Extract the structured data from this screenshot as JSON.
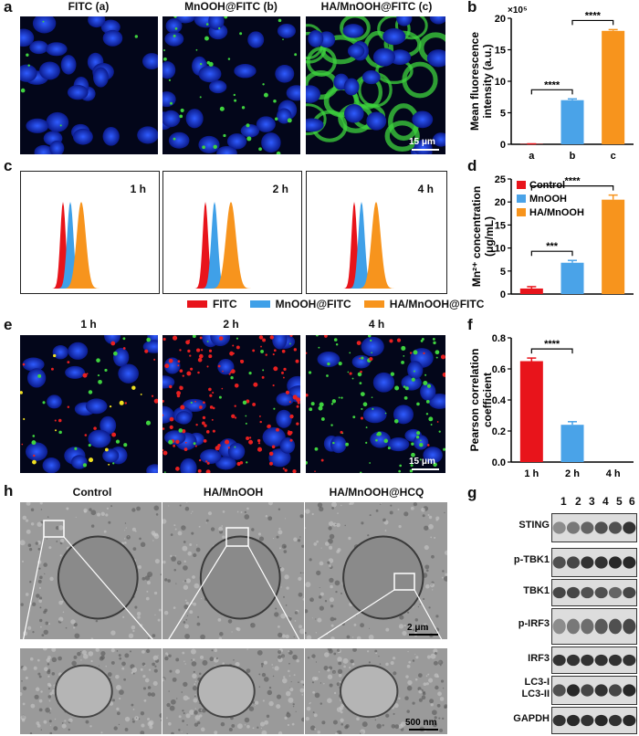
{
  "panel_letters": {
    "a": "a",
    "b": "b",
    "c": "c",
    "d": "d",
    "e": "e",
    "f": "f",
    "g": "g",
    "h": "h"
  },
  "panel_a": {
    "titles": [
      "FITC (a)",
      "MnOOH@FITC (b)",
      "HA/MnOOH@FITC (c)"
    ],
    "scale_bar": "15 μm"
  },
  "panel_c": {
    "times": [
      "1 h",
      "2 h",
      "4 h"
    ],
    "legend": [
      {
        "label": "FITC",
        "color": "#e8141b"
      },
      {
        "label": "MnOOH@FITC",
        "color": "#3fa0e8"
      },
      {
        "label": "HA/MnOOH@FITC",
        "color": "#f7941d"
      }
    ]
  },
  "panel_e": {
    "times": [
      "1 h",
      "2 h",
      "4 h"
    ],
    "scale_bar": "15 μm"
  },
  "panel_h": {
    "titles": [
      "Control",
      "HA/MnOOH",
      "HA/MnOOH@HCQ"
    ],
    "scale_bar_top": "2 μm",
    "scale_bar_bottom": "500 nm"
  },
  "panel_g": {
    "lanes": [
      "1",
      "2",
      "3",
      "4",
      "5",
      "6"
    ],
    "bands": [
      "STING",
      "p-TBK1",
      "TBK1",
      "p-IRF3",
      "IRF3",
      "LC3-I",
      "LC3-II",
      "GAPDH"
    ]
  },
  "chart_data": [
    {
      "panel": "b",
      "type": "bar",
      "categories": [
        "a",
        "b",
        "c"
      ],
      "values": [
        0.05,
        7.0,
        18.0
      ],
      "errors": [
        0.02,
        0.2,
        0.2
      ],
      "colors": [
        "#e8141b",
        "#4aa3e8",
        "#f7941d"
      ],
      "ylabel": "Mean fluorescence intensity (a.u.)",
      "y_multiplier": "×10⁵",
      "ylim": [
        0,
        20
      ],
      "yticks": [
        0,
        5,
        10,
        15,
        20
      ],
      "significance": [
        {
          "from": "a",
          "to": "b",
          "label": "****"
        },
        {
          "from": "b",
          "to": "c",
          "label": "****"
        }
      ]
    },
    {
      "panel": "d",
      "type": "bar",
      "categories": [
        "Control",
        "MnOOH",
        "HA/MnOOH"
      ],
      "values": [
        1.2,
        6.8,
        20.5
      ],
      "errors": [
        0.4,
        0.5,
        1.0
      ],
      "colors": [
        "#e8141b",
        "#4aa3e8",
        "#f7941d"
      ],
      "ylabel": "Mn²⁺ concentration (μg/mL)",
      "ylim": [
        0,
        25
      ],
      "yticks": [
        0,
        5,
        10,
        15,
        20,
        25
      ],
      "legend": [
        "Control",
        "MnOOH",
        "HA/MnOOH"
      ],
      "legend_position": "top-left",
      "significance": [
        {
          "from": "Control",
          "to": "MnOOH",
          "label": "***"
        },
        {
          "from": "Control",
          "to": "HA/MnOOH",
          "label": "****"
        }
      ]
    },
    {
      "panel": "f",
      "type": "bar",
      "categories": [
        "1 h",
        "2 h",
        "4 h"
      ],
      "values": [
        0.65,
        0.24,
        0
      ],
      "errors": [
        0.02,
        0.02,
        0
      ],
      "colors": [
        "#e8141b",
        "#4aa3e8",
        "#f7941d"
      ],
      "ylabel": "Pearson correlation coefficient",
      "ylim": [
        0,
        0.8
      ],
      "yticks": [
        0.0,
        0.2,
        0.4,
        0.6,
        0.8
      ],
      "significance": [
        {
          "from": "1 h",
          "to": "2 h",
          "label": "****"
        }
      ]
    }
  ]
}
